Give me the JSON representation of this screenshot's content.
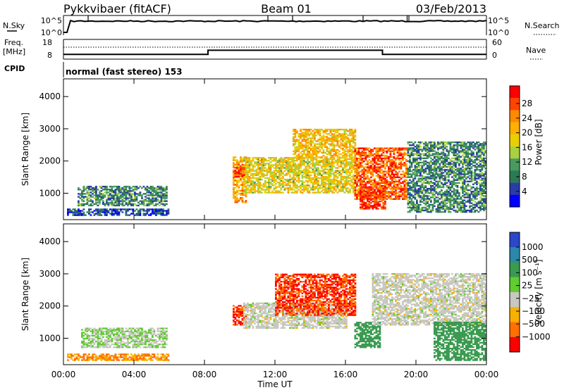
{
  "header": {
    "station": "Pykkvibaer (fitACF)",
    "beam": "Beam 01",
    "date": "03/Feb/2013"
  },
  "top_panels": {
    "nsky_label": "N.Sky",
    "nsky_tick_hi": "10^5",
    "nsky_tick_lo": "10^0",
    "nsearch_label": "N.Search",
    "nsearch_tick_hi": "10^5",
    "nsearch_tick_lo": "10^0",
    "freq_label_1": "Freq.",
    "freq_label_2": "[MHz]",
    "freq_tick_hi": "18",
    "freq_tick_lo": "8",
    "nave_label": "Nave",
    "nave_tick_hi": "60",
    "nave_tick_lo": "0",
    "cpid_label": "CPID",
    "cpid_value": "normal (fast stereo) 153"
  },
  "power_colorbar": {
    "title": "Power [dB]",
    "ticks": [
      "28",
      "24",
      "20",
      "16",
      "12",
      "8",
      "4"
    ],
    "colors": [
      "#ff0000",
      "#ff4400",
      "#ff8a00",
      "#ffb000",
      "#e8d000",
      "#a8d040",
      "#4a9a60",
      "#2a7a55",
      "#2a3ca8",
      "#0000ff"
    ]
  },
  "velocity_colorbar": {
    "title": "Velocity [m s⁻¹]",
    "ticks": [
      "1000",
      "500",
      "100",
      "25",
      "−25",
      "−100",
      "−500",
      "−1000"
    ],
    "colors": [
      "#2a48c8",
      "#2a88aa",
      "#3a9a50",
      "#60cc30",
      "#c8c8c0",
      "#f8b000",
      "#ff7000",
      "#ff0000"
    ]
  },
  "chart_data": {
    "type": "heatmap",
    "xlabel": "Time UT",
    "x_ticks": [
      "00:00",
      "04:00",
      "08:00",
      "12:00",
      "16:00",
      "20:00",
      "00:00"
    ],
    "xlim_hours": [
      0,
      24
    ],
    "ylabel": "Slant Range [km]",
    "y_ticks": [
      1000,
      2000,
      3000,
      4000
    ],
    "ylim_km": [
      180,
      4550
    ],
    "frequency_mhz": [
      {
        "from_hour": 0,
        "to_hour": 8.2,
        "value": 10.4
      },
      {
        "from_hour": 8.2,
        "to_hour": 18.1,
        "value": 12.5
      },
      {
        "from_hour": 18.1,
        "to_hour": 24,
        "value": 10.4
      }
    ],
    "power_regions_db": [
      {
        "t0": 0.2,
        "t1": 5.9,
        "r0": 300,
        "r1": 500,
        "db": 6
      },
      {
        "t0": 0.8,
        "t1": 5.8,
        "r0": 600,
        "r1": 1200,
        "db": 10
      },
      {
        "t0": 9.6,
        "t1": 10.3,
        "r0": 700,
        "r1": 2100,
        "db": 22
      },
      {
        "t0": 10.2,
        "t1": 16.5,
        "r0": 1000,
        "r1": 2100,
        "db": 18
      },
      {
        "t0": 13.0,
        "t1": 16.5,
        "r0": 2100,
        "r1": 3000,
        "db": 20
      },
      {
        "t0": 16.5,
        "t1": 19.5,
        "r0": 800,
        "r1": 2400,
        "db": 26
      },
      {
        "t0": 19.5,
        "t1": 24.0,
        "r0": 400,
        "r1": 2600,
        "db": 10
      },
      {
        "t0": 9.7,
        "t1": 10.2,
        "r0": 1500,
        "r1": 1800,
        "db": 28
      },
      {
        "t0": 16.8,
        "t1": 18.3,
        "r0": 500,
        "r1": 1200,
        "db": 28
      }
    ],
    "velocity_regions_ms": [
      {
        "t0": 0.2,
        "t1": 5.9,
        "r0": 300,
        "r1": 500,
        "v": -100
      },
      {
        "t0": 1.0,
        "t1": 5.8,
        "r0": 700,
        "r1": 1300,
        "v": 25
      },
      {
        "t0": 9.6,
        "t1": 10.3,
        "r0": 1400,
        "r1": 2000,
        "v": -500
      },
      {
        "t0": 10.2,
        "t1": 16.0,
        "r0": 1300,
        "r1": 2100,
        "v": 0
      },
      {
        "t0": 12.0,
        "t1": 16.5,
        "r0": 1700,
        "r1": 3000,
        "v": -500
      },
      {
        "t0": 16.5,
        "t1": 18.0,
        "r0": 700,
        "r1": 1500,
        "v": 100
      },
      {
        "t0": 17.5,
        "t1": 24.0,
        "r0": 1400,
        "r1": 3000,
        "v": 0
      },
      {
        "t0": 21.0,
        "t1": 24.0,
        "r0": 300,
        "r1": 1500,
        "v": 100
      }
    ]
  }
}
